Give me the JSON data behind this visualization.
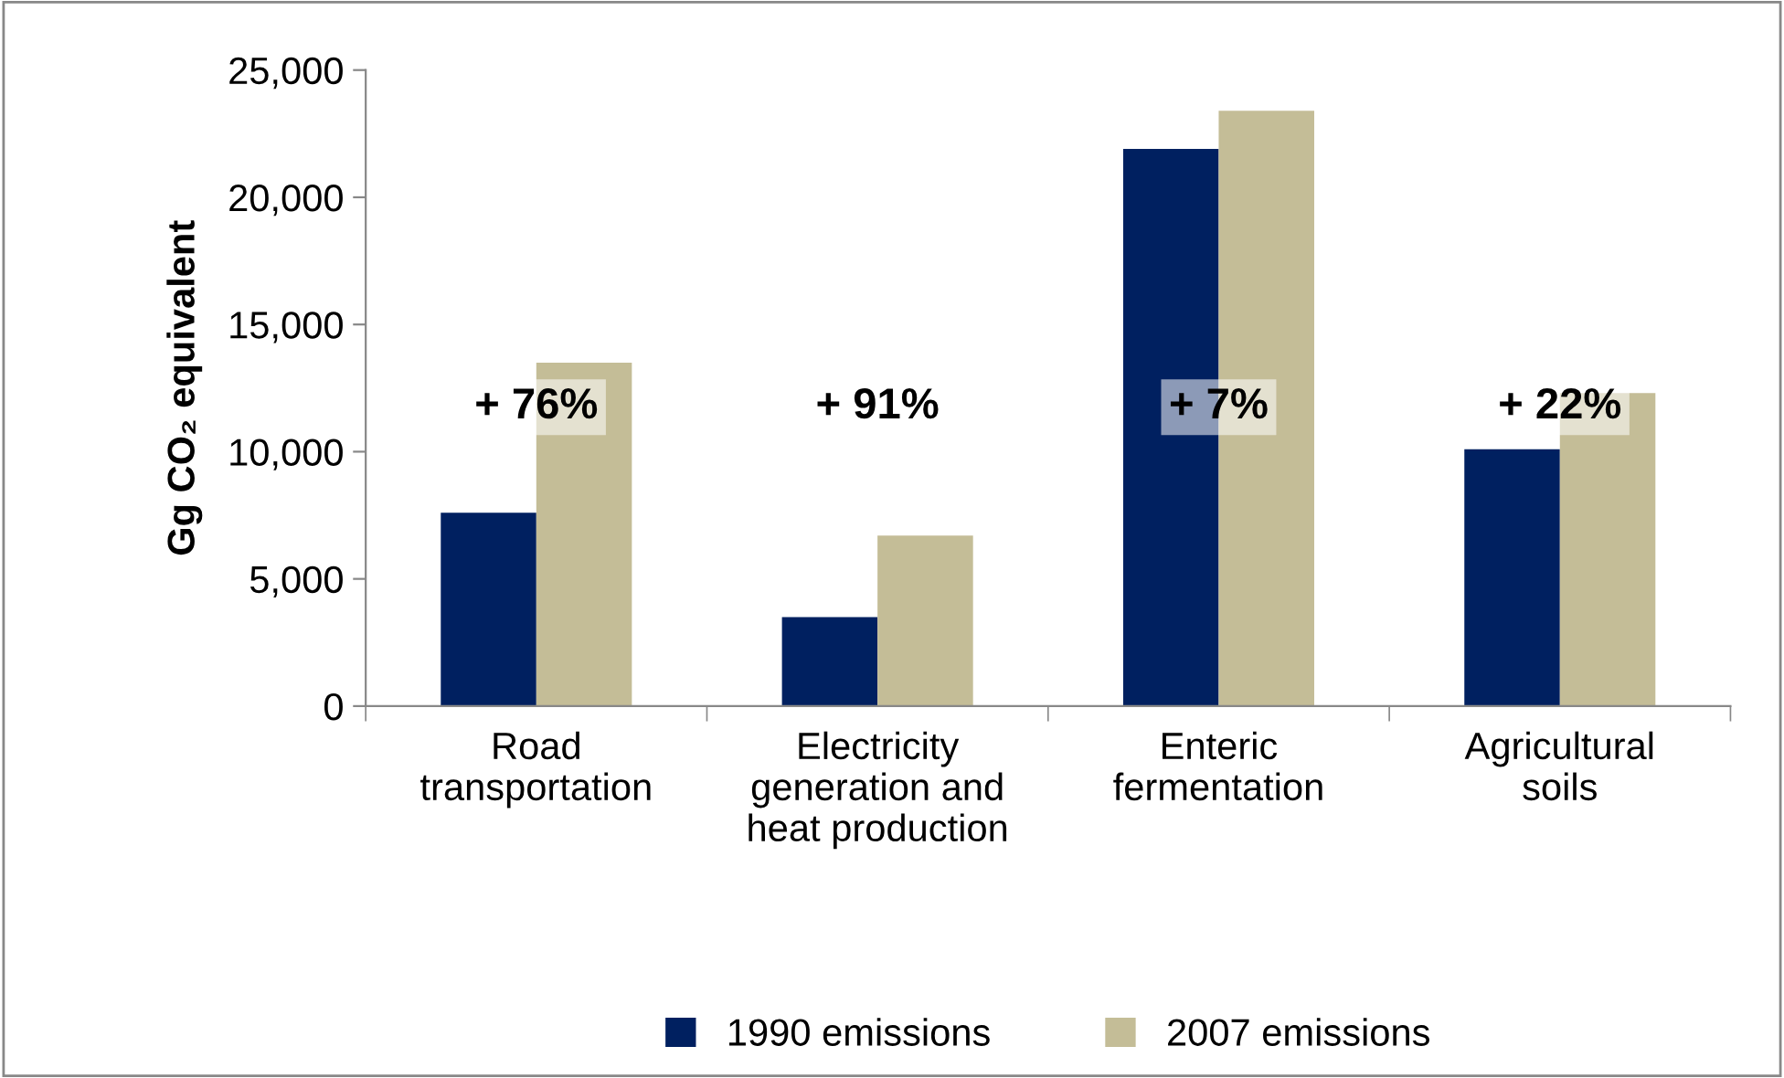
{
  "chart_data": {
    "type": "bar",
    "ylabel": "Gg CO₂ equivalent",
    "categories": [
      "Road\ntransportation",
      "Electricity\ngeneration and\nheat production",
      "Enteric\nfermentation",
      "Agricultural\nsoils"
    ],
    "series": [
      {
        "name": "1990 emissions",
        "color": "#002060",
        "values": [
          7600,
          3500,
          21900,
          10100
        ]
      },
      {
        "name": "2007 emissions",
        "color": "#c4bd97",
        "values": [
          13500,
          6700,
          23400,
          12300
        ]
      }
    ],
    "ylim": [
      0,
      25000
    ],
    "yticks": [
      {
        "value": 0,
        "label": "0"
      },
      {
        "value": 5000,
        "label": "5,000"
      },
      {
        "value": 10000,
        "label": "10,000"
      },
      {
        "value": 15000,
        "label": "15,000"
      },
      {
        "value": 20000,
        "label": "20,000"
      },
      {
        "value": 25000,
        "label": "25,000"
      }
    ],
    "annotations": [
      "+ 76%",
      "+ 91%",
      "+ 7%",
      "+ 22%"
    ],
    "grid": false,
    "legend": "bottom"
  }
}
